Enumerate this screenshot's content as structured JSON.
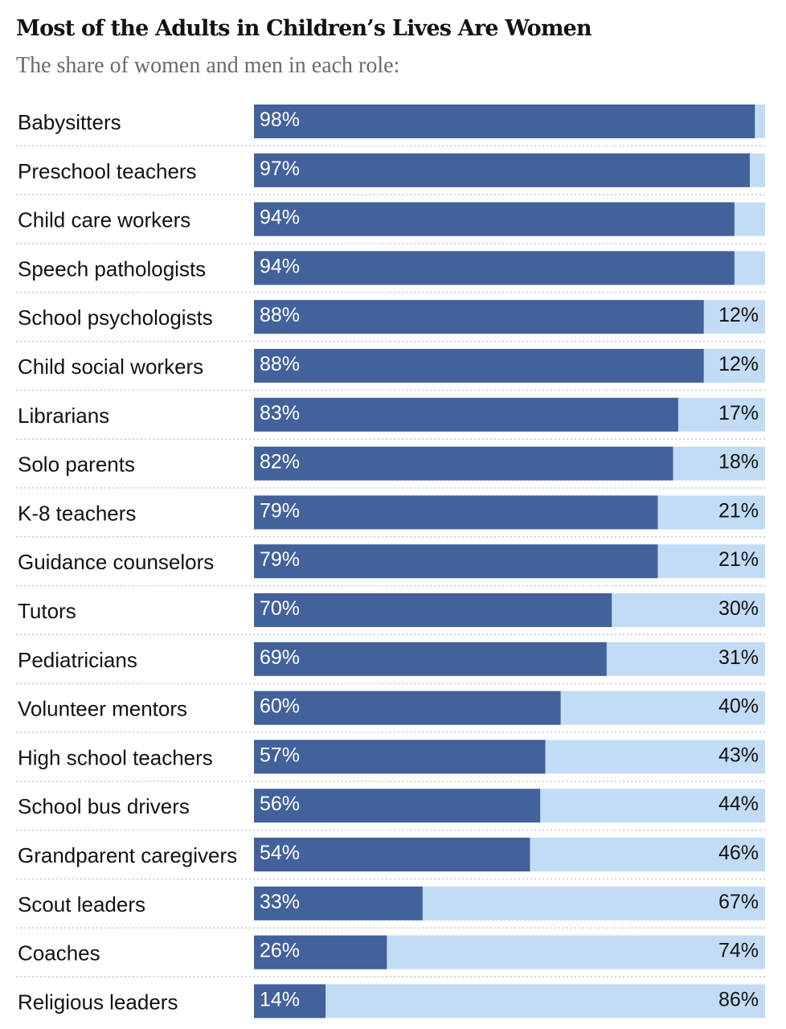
{
  "header": {
    "title": "Most of the Adults in Children’s Lives Are Women",
    "subtitle": "The share of women and men in each role:"
  },
  "colors": {
    "women": "#43619a",
    "men": "#c3dcf6",
    "divider": "#c8c8c8"
  },
  "chart_data": {
    "type": "bar",
    "orientation": "horizontal",
    "stacked": true,
    "title": "Most of the Adults in Children’s Lives Are Women",
    "subtitle": "The share of women and men in each role:",
    "xlim": [
      0,
      100
    ],
    "grid": false,
    "categories": [
      "Babysitters",
      "Preschool teachers",
      "Child care workers",
      "Speech pathologists",
      "School psychologists",
      "Child social workers",
      "Librarians",
      "Solo parents",
      "K-8 teachers",
      "Guidance counselors",
      "Tutors",
      "Pediatricians",
      "Volunteer mentors",
      "High school teachers",
      "School bus drivers",
      "Grandparent caregivers",
      "Scout leaders",
      "Coaches",
      "Religious leaders"
    ],
    "series": [
      {
        "values": [
          98,
          97,
          94,
          94,
          88,
          88,
          83,
          82,
          79,
          79,
          70,
          69,
          60,
          57,
          56,
          54,
          33,
          26,
          14
        ],
        "labels": [
          "98%",
          "97%",
          "94%",
          "94%",
          "88%",
          "88%",
          "83%",
          "82%",
          "79%",
          "79%",
          "70%",
          "69%",
          "60%",
          "57%",
          "56%",
          "54%",
          "33%",
          "26%",
          "14%"
        ]
      },
      {
        "values": [
          2,
          3,
          6,
          6,
          12,
          12,
          17,
          18,
          21,
          21,
          30,
          31,
          40,
          43,
          44,
          46,
          67,
          74,
          86
        ],
        "labels": [
          "",
          "",
          "",
          "",
          "12%",
          "12%",
          "17%",
          "18%",
          "21%",
          "21%",
          "30%",
          "31%",
          "40%",
          "43%",
          "44%",
          "46%",
          "67%",
          "74%",
          "86%"
        ]
      }
    ]
  }
}
